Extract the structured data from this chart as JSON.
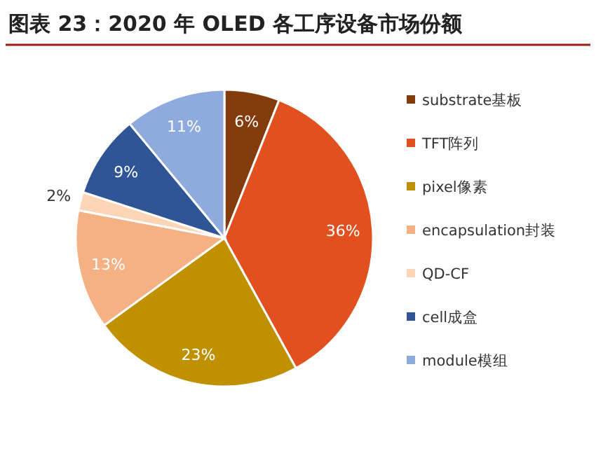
{
  "chart_data": {
    "type": "pie",
    "title": "图表 23：2020 年 OLED 各工序设备市场份额",
    "categories": [
      "substrate基板",
      "TFT阵列",
      "pixel像素",
      "encapsulation封装",
      "QD-CF",
      "cell成盒",
      "module模组"
    ],
    "values": [
      6,
      36,
      23,
      13,
      2,
      9,
      11
    ],
    "value_labels": [
      "6%",
      "36%",
      "23%",
      "13%",
      "2%",
      "9%",
      "11%"
    ],
    "colors": [
      "#843c0c",
      "#e2501f",
      "#bf9000",
      "#f4b183",
      "#fbd5b5",
      "#2f5597",
      "#8faadc"
    ],
    "legend": "right"
  }
}
